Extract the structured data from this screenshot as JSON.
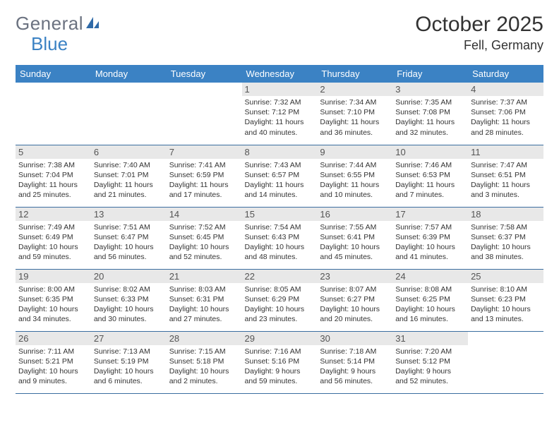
{
  "logo": {
    "text1": "General",
    "text2": "Blue"
  },
  "title": "October 2025",
  "location": "Fell, Germany",
  "header_bg": "#3b82c4",
  "daynum_bg": "#e8e8e8",
  "rule_color": "#3b6ea0",
  "weekdays": [
    "Sunday",
    "Monday",
    "Tuesday",
    "Wednesday",
    "Thursday",
    "Friday",
    "Saturday"
  ],
  "weeks": [
    [
      null,
      null,
      null,
      {
        "d": "1",
        "sr": "7:32 AM",
        "ss": "7:12 PM",
        "dl": "11 hours and 40 minutes."
      },
      {
        "d": "2",
        "sr": "7:34 AM",
        "ss": "7:10 PM",
        "dl": "11 hours and 36 minutes."
      },
      {
        "d": "3",
        "sr": "7:35 AM",
        "ss": "7:08 PM",
        "dl": "11 hours and 32 minutes."
      },
      {
        "d": "4",
        "sr": "7:37 AM",
        "ss": "7:06 PM",
        "dl": "11 hours and 28 minutes."
      }
    ],
    [
      {
        "d": "5",
        "sr": "7:38 AM",
        "ss": "7:04 PM",
        "dl": "11 hours and 25 minutes."
      },
      {
        "d": "6",
        "sr": "7:40 AM",
        "ss": "7:01 PM",
        "dl": "11 hours and 21 minutes."
      },
      {
        "d": "7",
        "sr": "7:41 AM",
        "ss": "6:59 PM",
        "dl": "11 hours and 17 minutes."
      },
      {
        "d": "8",
        "sr": "7:43 AM",
        "ss": "6:57 PM",
        "dl": "11 hours and 14 minutes."
      },
      {
        "d": "9",
        "sr": "7:44 AM",
        "ss": "6:55 PM",
        "dl": "11 hours and 10 minutes."
      },
      {
        "d": "10",
        "sr": "7:46 AM",
        "ss": "6:53 PM",
        "dl": "11 hours and 7 minutes."
      },
      {
        "d": "11",
        "sr": "7:47 AM",
        "ss": "6:51 PM",
        "dl": "11 hours and 3 minutes."
      }
    ],
    [
      {
        "d": "12",
        "sr": "7:49 AM",
        "ss": "6:49 PM",
        "dl": "10 hours and 59 minutes."
      },
      {
        "d": "13",
        "sr": "7:51 AM",
        "ss": "6:47 PM",
        "dl": "10 hours and 56 minutes."
      },
      {
        "d": "14",
        "sr": "7:52 AM",
        "ss": "6:45 PM",
        "dl": "10 hours and 52 minutes."
      },
      {
        "d": "15",
        "sr": "7:54 AM",
        "ss": "6:43 PM",
        "dl": "10 hours and 48 minutes."
      },
      {
        "d": "16",
        "sr": "7:55 AM",
        "ss": "6:41 PM",
        "dl": "10 hours and 45 minutes."
      },
      {
        "d": "17",
        "sr": "7:57 AM",
        "ss": "6:39 PM",
        "dl": "10 hours and 41 minutes."
      },
      {
        "d": "18",
        "sr": "7:58 AM",
        "ss": "6:37 PM",
        "dl": "10 hours and 38 minutes."
      }
    ],
    [
      {
        "d": "19",
        "sr": "8:00 AM",
        "ss": "6:35 PM",
        "dl": "10 hours and 34 minutes."
      },
      {
        "d": "20",
        "sr": "8:02 AM",
        "ss": "6:33 PM",
        "dl": "10 hours and 30 minutes."
      },
      {
        "d": "21",
        "sr": "8:03 AM",
        "ss": "6:31 PM",
        "dl": "10 hours and 27 minutes."
      },
      {
        "d": "22",
        "sr": "8:05 AM",
        "ss": "6:29 PM",
        "dl": "10 hours and 23 minutes."
      },
      {
        "d": "23",
        "sr": "8:07 AM",
        "ss": "6:27 PM",
        "dl": "10 hours and 20 minutes."
      },
      {
        "d": "24",
        "sr": "8:08 AM",
        "ss": "6:25 PM",
        "dl": "10 hours and 16 minutes."
      },
      {
        "d": "25",
        "sr": "8:10 AM",
        "ss": "6:23 PM",
        "dl": "10 hours and 13 minutes."
      }
    ],
    [
      {
        "d": "26",
        "sr": "7:11 AM",
        "ss": "5:21 PM",
        "dl": "10 hours and 9 minutes."
      },
      {
        "d": "27",
        "sr": "7:13 AM",
        "ss": "5:19 PM",
        "dl": "10 hours and 6 minutes."
      },
      {
        "d": "28",
        "sr": "7:15 AM",
        "ss": "5:18 PM",
        "dl": "10 hours and 2 minutes."
      },
      {
        "d": "29",
        "sr": "7:16 AM",
        "ss": "5:16 PM",
        "dl": "9 hours and 59 minutes."
      },
      {
        "d": "30",
        "sr": "7:18 AM",
        "ss": "5:14 PM",
        "dl": "9 hours and 56 minutes."
      },
      {
        "d": "31",
        "sr": "7:20 AM",
        "ss": "5:12 PM",
        "dl": "9 hours and 52 minutes."
      },
      null
    ]
  ],
  "labels": {
    "sunrise": "Sunrise: ",
    "sunset": "Sunset: ",
    "daylight": "Daylight: "
  }
}
